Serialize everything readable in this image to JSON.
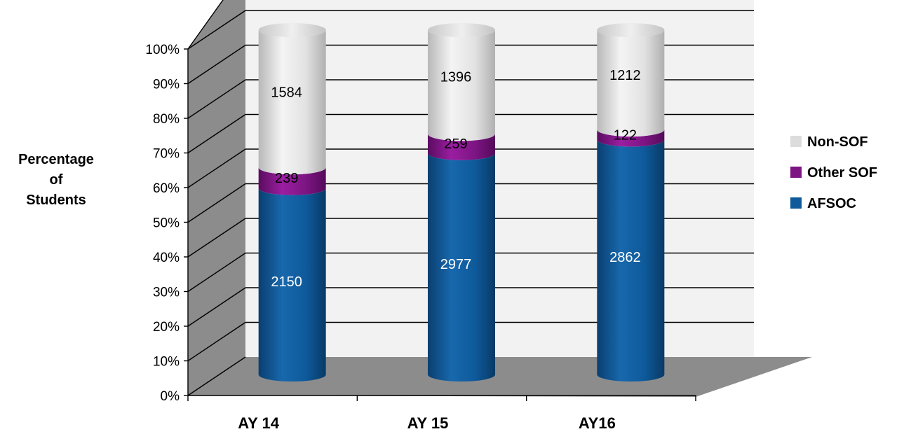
{
  "chart_data": {
    "type": "bar",
    "stacked": "percent",
    "style": "3d-cylinder",
    "ylabel": [
      "Percentage",
      "of",
      "Students"
    ],
    "ylim": [
      0,
      100
    ],
    "yticks": [
      "0%",
      "10%",
      "20%",
      "30%",
      "40%",
      "50%",
      "60%",
      "70%",
      "80%",
      "90%",
      "100%"
    ],
    "categories": [
      "AY 14",
      "AY 15",
      "AY16"
    ],
    "series": [
      {
        "name": "AFSOC",
        "values": [
          2150,
          2977,
          2862
        ],
        "color": "#0e5a9b",
        "label_color": "#ffffff"
      },
      {
        "name": "Other SOF",
        "values": [
          239,
          259,
          122
        ],
        "color": "#7d1583",
        "label_color": "#000000"
      },
      {
        "name": "Non-SOF",
        "values": [
          1584,
          1396,
          1212
        ],
        "color": "#dcdcdc",
        "label_color": "#000000"
      }
    ],
    "legend": {
      "position": "right",
      "order": [
        "Non-SOF",
        "Other SOF",
        "AFSOC"
      ]
    },
    "grid": true
  }
}
